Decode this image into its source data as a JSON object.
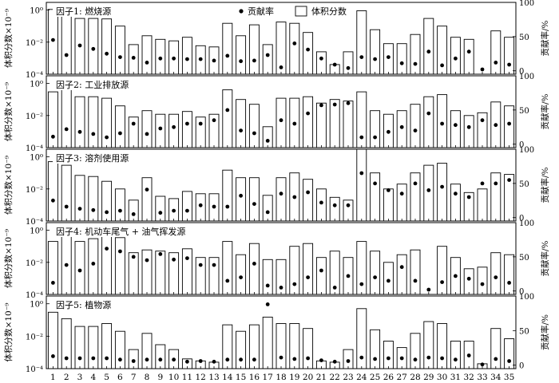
{
  "chart_data": {
    "type": "bar+scatter",
    "layout": "5 stacked panels sharing the x axis",
    "x": [
      1,
      2,
      3,
      4,
      5,
      6,
      7,
      8,
      9,
      10,
      11,
      12,
      13,
      14,
      15,
      16,
      17,
      18,
      19,
      20,
      21,
      22,
      23,
      24,
      25,
      26,
      27,
      28,
      29,
      30,
      31,
      32,
      33,
      34,
      35
    ],
    "x_tick_labels": [
      "1",
      "2",
      "3",
      "4",
      "5",
      "6",
      "7",
      "8",
      "9",
      "10",
      "11",
      "12",
      "13",
      "14",
      "15",
      "16",
      "17",
      "18",
      "19",
      "20",
      "21",
      "22",
      "23",
      "24",
      "25",
      "26",
      "27",
      "28",
      "29",
      "30",
      "31",
      "32",
      "33",
      "34",
      "35"
    ],
    "legend": {
      "dot_label": "贡献率",
      "bar_label": "体积分数",
      "placement": "top"
    },
    "left_axis": {
      "label": "体积分数×10⁻⁹",
      "scale": "log",
      "ylim": [
        0.0001,
        3
      ],
      "ticks": [
        "10⁻⁴",
        "10⁻²",
        "10⁰"
      ]
    },
    "right_axis": {
      "label": "贡献率/%",
      "ylim": [
        -5,
        100
      ],
      "ticks": [
        "0",
        "50",
        "100"
      ]
    },
    "series": [
      {
        "name": "因子1: 燃烧源",
        "volume_fraction": [
          1.1,
          0.7,
          0.3,
          0.3,
          0.28,
          0.1,
          0.007,
          0.025,
          0.015,
          0.012,
          0.02,
          0.006,
          0.005,
          0.15,
          0.025,
          0.12,
          0.007,
          0.18,
          0.15,
          0.04,
          0.0025,
          0.0004,
          0.0025,
          0.9,
          0.06,
          0.008,
          0.008,
          0.03,
          0.3,
          0.1,
          0.02,
          0.015,
          8e-05,
          0.05,
          0.02
        ],
        "contribution": [
          45,
          23,
          37,
          32,
          25,
          20,
          19,
          12,
          18,
          18,
          17,
          17,
          15,
          22,
          14,
          15,
          23,
          5,
          40,
          31,
          18,
          9,
          4,
          20,
          17,
          20,
          11,
          10,
          28,
          8,
          18,
          28,
          2,
          12,
          9
        ]
      },
      {
        "name": "因子2: 工业排放源",
        "volume_fraction": [
          0.3,
          0.5,
          0.15,
          0.15,
          0.12,
          0.04,
          0.008,
          0.02,
          0.012,
          0.012,
          0.018,
          0.008,
          0.012,
          0.4,
          0.1,
          0.05,
          0.002,
          0.12,
          0.12,
          0.15,
          0.06,
          0.1,
          0.08,
          0.3,
          0.02,
          0.012,
          0.02,
          0.05,
          0.15,
          0.2,
          0.02,
          0.01,
          0.015,
          0.07,
          0.04
        ],
        "contribution": [
          11,
          22,
          18,
          15,
          10,
          16,
          30,
          15,
          23,
          25,
          30,
          30,
          35,
          50,
          20,
          16,
          5,
          35,
          30,
          45,
          57,
          58,
          60,
          10,
          10,
          18,
          25,
          20,
          45,
          30,
          28,
          25,
          35,
          28,
          30
        ]
      },
      {
        "name": "因子3: 溶剂使用源",
        "volume_fraction": [
          0.5,
          0.3,
          0.07,
          0.06,
          0.03,
          0.01,
          0.002,
          0.05,
          0.0035,
          0.0025,
          0.007,
          0.005,
          0.005,
          0.15,
          0.05,
          0.05,
          0.004,
          0.05,
          0.1,
          0.04,
          0.01,
          0.003,
          0.002,
          3,
          0.1,
          0.01,
          0.02,
          0.1,
          0.3,
          0.4,
          0.02,
          0.006,
          0.01,
          0.1,
          0.08
        ],
        "contribution": [
          25,
          16,
          13,
          11,
          8,
          10,
          5,
          41,
          7,
          10,
          10,
          18,
          16,
          16,
          32,
          20,
          8,
          35,
          30,
          37,
          22,
          18,
          18,
          65,
          50,
          40,
          35,
          50,
          40,
          45,
          35,
          30,
          50,
          50,
          55
        ]
      },
      {
        "name": "因子4: 机动车尾气 + 油气挥发源",
        "volume_fraction": [
          0.2,
          0.9,
          0.2,
          0.3,
          0.8,
          0.35,
          0.04,
          0.06,
          0.05,
          0.04,
          0.07,
          0.02,
          0.02,
          0.2,
          0.03,
          0.15,
          0.015,
          0.015,
          0.1,
          0.15,
          0.02,
          0.05,
          0.02,
          0.2,
          0.05,
          0.01,
          0.03,
          0.06,
          0.0001,
          0.1,
          0.02,
          0.004,
          0.005,
          0.04,
          0.03
        ],
        "contribution": [
          12,
          38,
          30,
          40,
          62,
          58,
          50,
          45,
          54,
          46,
          48,
          38,
          38,
          15,
          20,
          40,
          8,
          5,
          10,
          20,
          30,
          5,
          22,
          10,
          20,
          15,
          35,
          15,
          2,
          13,
          22,
          18,
          10,
          20,
          12
        ]
      },
      {
        "name": "因子5: 植物源",
        "volume_fraction": [
          0.3,
          0.12,
          0.04,
          0.04,
          0.06,
          0.02,
          0.0015,
          0.015,
          0.003,
          0.0015,
          0.0004,
          0.0003,
          0.00025,
          0.05,
          0.02,
          0.05,
          0.15,
          0.06,
          0.06,
          0.03,
          0.0003,
          0.00025,
          0.0015,
          0.5,
          0.025,
          0.005,
          0.002,
          0.015,
          0.08,
          0.06,
          0.005,
          0.005,
          0.0002,
          0.03,
          0.007
        ],
        "contribution": [
          13,
          10,
          10,
          10,
          10,
          8,
          6,
          8,
          8,
          8,
          5,
          6,
          5,
          8,
          8,
          8,
          88,
          11,
          9,
          10,
          7,
          5,
          6,
          11,
          9,
          10,
          10,
          8,
          11,
          10,
          8,
          14,
          1,
          9,
          6
        ]
      }
    ]
  }
}
